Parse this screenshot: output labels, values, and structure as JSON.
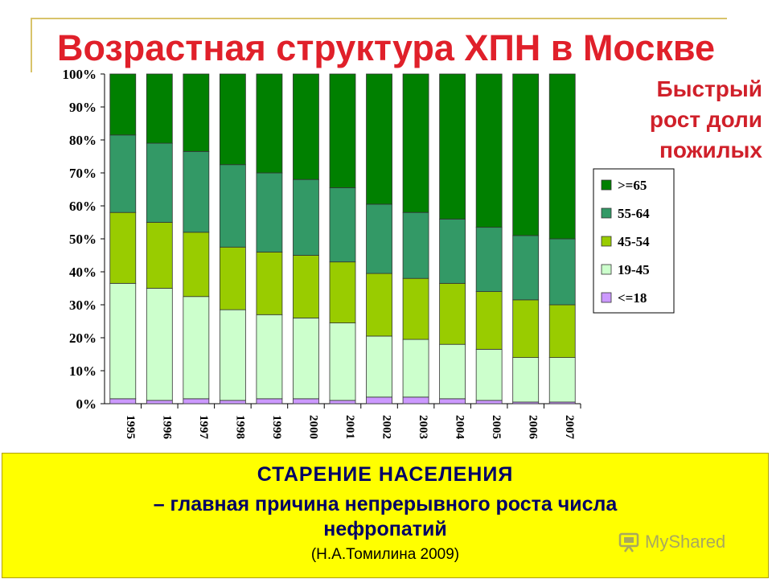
{
  "slide": {
    "title": "Возрастная структура ХПН в Москве",
    "annotation_lines": [
      "Быстрый",
      "рост доли",
      "пожилых"
    ],
    "bottom_box": {
      "line1": "СТАРЕНИЕ НАСЕЛЕНИЯ",
      "line2": "– главная причина непрерывного роста числа",
      "line3": "нефропатий",
      "citation": "(Н.А.Томилина 2009)"
    },
    "watermark": "MyShared"
  },
  "colors": {
    "frame": "#d8c36a",
    "title": "#e0202a",
    "annotation": "#d0202a",
    "bottom_bg": "#ffff00",
    "bottom_text": "#000066"
  },
  "chart_data": {
    "type": "bar",
    "stacked": "percent",
    "title": "",
    "xlabel": "",
    "ylabel": "",
    "ylim": [
      0,
      100
    ],
    "y_ticks": [
      "0%",
      "10%",
      "20%",
      "30%",
      "40%",
      "50%",
      "60%",
      "70%",
      "80%",
      "90%",
      "100%"
    ],
    "categories": [
      "1995",
      "1996",
      "1997",
      "1998",
      "1999",
      "2000",
      "2001",
      "2002",
      "2003",
      "2004",
      "2005",
      "2006",
      "2007"
    ],
    "legend_position": "right",
    "legend_order": [
      ">=65",
      "55-64",
      "45-54",
      "19-45",
      "<=18"
    ],
    "series": [
      {
        "name": "<=18",
        "color": "#cc99ff",
        "values": [
          1.5,
          1,
          1.5,
          1,
          1.5,
          1.5,
          1,
          2,
          2,
          1.5,
          1,
          0.5,
          0.5
        ]
      },
      {
        "name": "19-45",
        "color": "#ccffcc",
        "values": [
          35,
          34,
          31,
          27.5,
          25.5,
          24.5,
          23.5,
          18.5,
          17.5,
          16.5,
          15.5,
          13.5,
          13.5
        ]
      },
      {
        "name": "45-54",
        "color": "#99cc00",
        "values": [
          21.5,
          20,
          19.5,
          19,
          19,
          19,
          18.5,
          19,
          18.5,
          18.5,
          17.5,
          17.5,
          16
        ]
      },
      {
        "name": "55-64",
        "color": "#339966",
        "values": [
          23.5,
          24,
          24.5,
          25,
          24,
          23,
          22.5,
          21,
          20,
          19.5,
          19.5,
          19.5,
          20
        ]
      },
      {
        "name": ">=65",
        "color": "#008000",
        "values": [
          18.5,
          21,
          23.5,
          27.5,
          30,
          32,
          34.5,
          39.5,
          42,
          44,
          46.5,
          49,
          50
        ]
      }
    ]
  }
}
